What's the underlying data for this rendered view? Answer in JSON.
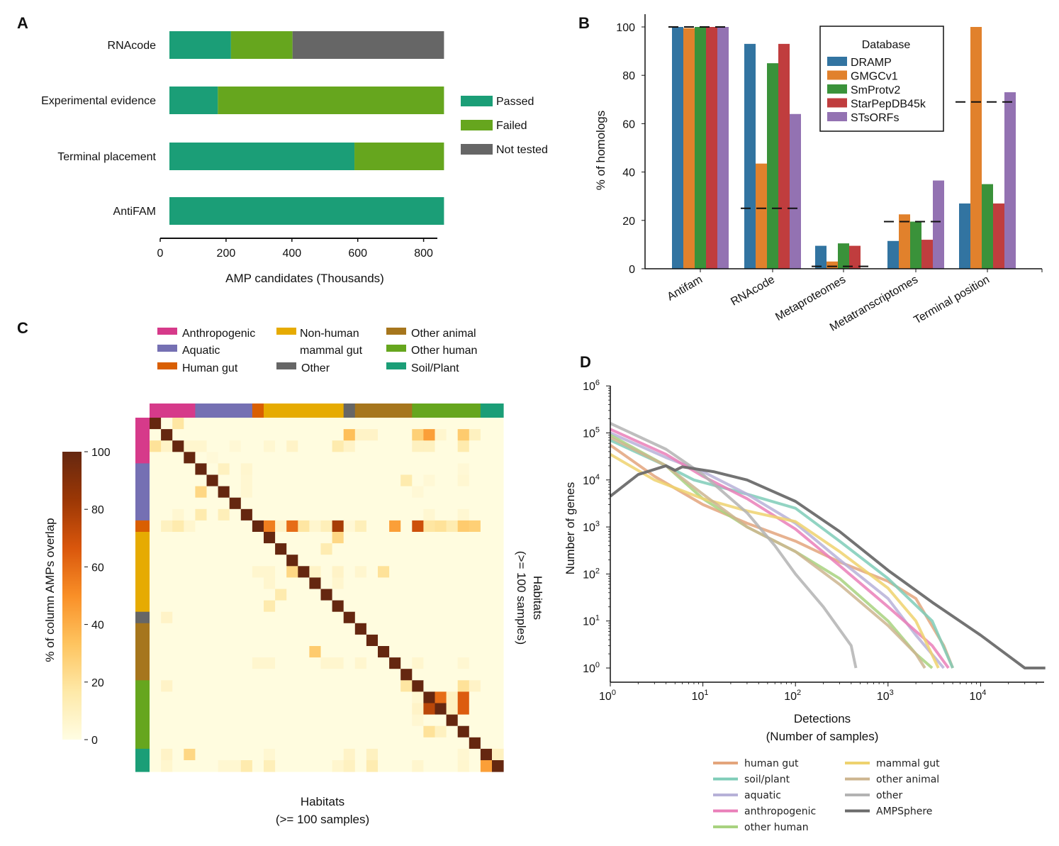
{
  "figure": {
    "panels": [
      "A",
      "B",
      "C",
      "D"
    ]
  },
  "chart_data": [
    {
      "panel": "A",
      "type": "bar",
      "orientation": "horizontal",
      "stacked": true,
      "title": "",
      "xlabel": "AMP candidates (Thousands)",
      "ylabel": "",
      "xlim": [
        0,
        850
      ],
      "xticks": [
        "0",
        "200",
        "400",
        "600",
        "800"
      ],
      "xtick_values": [
        0,
        200,
        400,
        600,
        800
      ],
      "categories": [
        "RNAcode",
        "Experimental evidence",
        "Terminal placement",
        "AntiFAM"
      ],
      "series": [
        {
          "name": "Passed",
          "color": "#1b9e77",
          "values": [
            187,
            147,
            562,
            834
          ]
        },
        {
          "name": "Failed",
          "color": "#66a61e",
          "values": [
            187,
            687,
            272,
            0
          ]
        },
        {
          "name": "Not tested",
          "color": "#666666",
          "values": [
            460,
            0,
            0,
            0
          ]
        }
      ],
      "legend": {
        "position": "right",
        "entries": [
          "Passed",
          "Failed",
          "Not tested"
        ]
      }
    },
    {
      "panel": "B",
      "type": "bar",
      "orientation": "vertical",
      "grouped": true,
      "title": "",
      "xlabel": "",
      "ylabel": "% of homologs",
      "ylim": [
        0,
        105
      ],
      "yticks": [
        "0",
        "20",
        "40",
        "60",
        "80",
        "100"
      ],
      "ytick_values": [
        0,
        20,
        40,
        60,
        80,
        100
      ],
      "categories": [
        "Antifam",
        "RNAcode",
        "Metaproteomes",
        "Metatranscriptomes",
        "Terminal position"
      ],
      "series": [
        {
          "name": "DRAMP",
          "color": "#3274a1",
          "values": [
            100,
            93,
            9.5,
            11.5,
            27
          ]
        },
        {
          "name": "GMGCv1",
          "color": "#e1812c",
          "values": [
            99.5,
            43.5,
            3,
            22.5,
            100
          ]
        },
        {
          "name": "SmProtv2",
          "color": "#3a923a",
          "values": [
            100,
            85,
            10.5,
            19.5,
            35
          ]
        },
        {
          "name": "StarPepDB45k",
          "color": "#c03d3e",
          "values": [
            100,
            93,
            9.5,
            12,
            27
          ]
        },
        {
          "name": "STsORFs",
          "color": "#9372b2",
          "values": [
            100,
            64,
            0,
            36.5,
            73
          ]
        }
      ],
      "reference_lines": [
        100,
        25,
        1,
        19.5,
        69
      ],
      "legend": {
        "title": "Database",
        "position": "top-center",
        "entries": [
          "DRAMP",
          "GMGCv1",
          "SmProtv2",
          "StarPepDB45k",
          "STsORFs"
        ]
      }
    },
    {
      "panel": "C",
      "type": "heatmap",
      "title": "",
      "xlabel": "Habitats\n(>= 100 samples)",
      "xlabel_lines": [
        "Habitats",
        "(>= 100 samples)"
      ],
      "ylabel_lines": [
        "Habitats",
        "(>= 100 samples)"
      ],
      "colorbar": {
        "label": "% of column AMPs overlap",
        "range": [
          0,
          100
        ],
        "ticks": [
          "0",
          "20",
          "40",
          "60",
          "80",
          "100"
        ],
        "tick_values": [
          0,
          20,
          40,
          60,
          80,
          100
        ],
        "colors": [
          "#fffde3",
          "#fee9a8",
          "#fec45f",
          "#f98f27",
          "#d9560c",
          "#9b3705",
          "#652710"
        ]
      },
      "groups": [
        {
          "name": "Anthropogenic",
          "color": "#d63a8a",
          "count": 4
        },
        {
          "name": "Aquatic",
          "color": "#7570b3",
          "count": 5
        },
        {
          "name": "Human gut",
          "color": "#d95f02",
          "count": 1
        },
        {
          "name": "Non-human mammal gut",
          "color": "#e6ab02",
          "count": 7
        },
        {
          "name": "Other",
          "color": "#666666",
          "count": 1
        },
        {
          "name": "Other animal",
          "color": "#a6761d",
          "count": 5
        },
        {
          "name": "Other human",
          "color": "#66a61e",
          "count": 6
        },
        {
          "name": "Soil/Plant",
          "color": "#1b9e77",
          "count": 2
        }
      ],
      "legend_entries": [
        {
          "label": "Anthropogenic",
          "color": "#d63a8a"
        },
        {
          "label": "Aquatic",
          "color": "#7570b3"
        },
        {
          "label": "Human gut",
          "color": "#d95f02"
        },
        {
          "label": "Non-human\nmammal gut",
          "line1": "Non-human",
          "line2": "mammal gut",
          "color": "#e6ab02"
        },
        {
          "label": "Other",
          "color": "#666666"
        },
        {
          "label": "Other animal",
          "color": "#a6761d"
        },
        {
          "label": "Other human",
          "color": "#66a61e"
        },
        {
          "label": "Soil/Plant",
          "color": "#1b9e77"
        }
      ],
      "size": 31,
      "diagonal_value": 100,
      "background_value": 1,
      "cells": [
        [
          0,
          2,
          18
        ],
        [
          1,
          17,
          35
        ],
        [
          1,
          18,
          8
        ],
        [
          1,
          19,
          8
        ],
        [
          1,
          23,
          28
        ],
        [
          1,
          24,
          45
        ],
        [
          1,
          25,
          6
        ],
        [
          1,
          27,
          30
        ],
        [
          1,
          28,
          10
        ],
        [
          2,
          0,
          20
        ],
        [
          2,
          1,
          8
        ],
        [
          2,
          3,
          6
        ],
        [
          2,
          4,
          6
        ],
        [
          2,
          7,
          4
        ],
        [
          2,
          10,
          5
        ],
        [
          2,
          12,
          8
        ],
        [
          2,
          16,
          15
        ],
        [
          2,
          17,
          8
        ],
        [
          2,
          23,
          10
        ],
        [
          2,
          24,
          10
        ],
        [
          2,
          27,
          15
        ],
        [
          3,
          5,
          3
        ],
        [
          4,
          6,
          10
        ],
        [
          4,
          8,
          6
        ],
        [
          4,
          27,
          4
        ],
        [
          5,
          8,
          5
        ],
        [
          5,
          22,
          15
        ],
        [
          5,
          24,
          4
        ],
        [
          5,
          27,
          5
        ],
        [
          6,
          4,
          25
        ],
        [
          6,
          8,
          5
        ],
        [
          6,
          23,
          4
        ],
        [
          8,
          4,
          15
        ],
        [
          8,
          6,
          12
        ],
        [
          8,
          2,
          5
        ],
        [
          8,
          24,
          5
        ],
        [
          8,
          27,
          5
        ],
        [
          9,
          1,
          10
        ],
        [
          9,
          2,
          15
        ],
        [
          9,
          3,
          6
        ],
        [
          9,
          10,
          55
        ],
        [
          9,
          11,
          8
        ],
        [
          9,
          12,
          60
        ],
        [
          9,
          13,
          18
        ],
        [
          9,
          14,
          6
        ],
        [
          9,
          15,
          12
        ],
        [
          9,
          16,
          80
        ],
        [
          9,
          17,
          4
        ],
        [
          9,
          18,
          12
        ],
        [
          9,
          21,
          45
        ],
        [
          9,
          23,
          70
        ],
        [
          9,
          24,
          18
        ],
        [
          9,
          25,
          20
        ],
        [
          9,
          26,
          14
        ],
        [
          9,
          27,
          30
        ],
        [
          9,
          28,
          28
        ],
        [
          10,
          16,
          25
        ],
        [
          11,
          15,
          14
        ],
        [
          13,
          9,
          6
        ],
        [
          13,
          10,
          6
        ],
        [
          13,
          12,
          25
        ],
        [
          13,
          14,
          8
        ],
        [
          13,
          16,
          8
        ],
        [
          13,
          18,
          6
        ],
        [
          13,
          20,
          20
        ],
        [
          14,
          10,
          6
        ],
        [
          14,
          16,
          6
        ],
        [
          15,
          11,
          15
        ],
        [
          16,
          10,
          15
        ],
        [
          17,
          1,
          8
        ],
        [
          20,
          14,
          30
        ],
        [
          21,
          9,
          6
        ],
        [
          21,
          10,
          6
        ],
        [
          21,
          15,
          6
        ],
        [
          21,
          16,
          6
        ],
        [
          21,
          18,
          6
        ],
        [
          21,
          23,
          6
        ],
        [
          21,
          27,
          5
        ],
        [
          23,
          1,
          8
        ],
        [
          23,
          22,
          18
        ],
        [
          23,
          27,
          20
        ],
        [
          23,
          28,
          8
        ],
        [
          24,
          23,
          5
        ],
        [
          24,
          25,
          60
        ],
        [
          24,
          26,
          10
        ],
        [
          24,
          27,
          65
        ],
        [
          25,
          23,
          8
        ],
        [
          25,
          24,
          75
        ],
        [
          25,
          26,
          10
        ],
        [
          25,
          27,
          65
        ],
        [
          26,
          23,
          5
        ],
        [
          27,
          24,
          20
        ],
        [
          27,
          25,
          10
        ],
        [
          29,
          1,
          8
        ],
        [
          29,
          3,
          25
        ],
        [
          29,
          10,
          5
        ],
        [
          29,
          17,
          8
        ],
        [
          29,
          19,
          10
        ],
        [
          29,
          27,
          5
        ],
        [
          29,
          30,
          10
        ],
        [
          30,
          1,
          6
        ],
        [
          30,
          6,
          5
        ],
        [
          30,
          7,
          5
        ],
        [
          30,
          8,
          15
        ],
        [
          30,
          10,
          12
        ],
        [
          30,
          16,
          6
        ],
        [
          30,
          17,
          10
        ],
        [
          30,
          19,
          14
        ],
        [
          30,
          23,
          6
        ],
        [
          30,
          27,
          6
        ],
        [
          30,
          29,
          45
        ]
      ]
    },
    {
      "panel": "D",
      "type": "line",
      "scale": "log-log",
      "title": "",
      "xlabel": "Detections\n(Number of samples)",
      "xlabel_lines": [
        "Detections",
        "(Number of samples)"
      ],
      "ylabel": "Number of genes",
      "xlim": [
        1,
        50000
      ],
      "ylim": [
        0.5,
        1000000
      ],
      "xticks": [
        {
          "base": "10",
          "exp": "0",
          "value": 1
        },
        {
          "base": "10",
          "exp": "1",
          "value": 10
        },
        {
          "base": "10",
          "exp": "2",
          "value": 100
        },
        {
          "base": "10",
          "exp": "3",
          "value": 1000
        },
        {
          "base": "10",
          "exp": "4",
          "value": 10000
        }
      ],
      "yticks": [
        {
          "base": "10",
          "exp": "0",
          "value": 1
        },
        {
          "base": "10",
          "exp": "1",
          "value": 10
        },
        {
          "base": "10",
          "exp": "2",
          "value": 100
        },
        {
          "base": "10",
          "exp": "3",
          "value": 1000
        },
        {
          "base": "10",
          "exp": "4",
          "value": 10000
        },
        {
          "base": "10",
          "exp": "5",
          "value": 100000
        },
        {
          "base": "10",
          "exp": "6",
          "value": 1000000
        }
      ],
      "series": [
        {
          "name": "human gut",
          "color": "#e3a57c",
          "x": [
            1,
            3,
            10,
            30,
            100,
            300,
            1000,
            2000,
            4000,
            5000
          ],
          "y": [
            55000,
            12000,
            3000,
            1200,
            500,
            180,
            70,
            30,
            3,
            1
          ]
        },
        {
          "name": "soil/plant",
          "color": "#7fcdb8",
          "x": [
            1,
            4,
            8,
            30,
            100,
            300,
            1000,
            3000,
            5000
          ],
          "y": [
            70000,
            20000,
            10000,
            5000,
            2500,
            500,
            80,
            10,
            1
          ]
        },
        {
          "name": "aquatic",
          "color": "#b7b1d8",
          "x": [
            1,
            4,
            10,
            30,
            100,
            300,
            1000,
            2000,
            4000
          ],
          "y": [
            100000,
            30000,
            15000,
            5000,
            1200,
            200,
            30,
            5,
            1
          ]
        },
        {
          "name": "anthropogenic",
          "color": "#ea7fb9",
          "x": [
            1,
            4,
            10,
            30,
            100,
            300,
            1000,
            3000,
            4500
          ],
          "y": [
            120000,
            35000,
            12000,
            4000,
            900,
            150,
            20,
            3,
            1
          ]
        },
        {
          "name": "other human",
          "color": "#a8d27f",
          "x": [
            1,
            4,
            10,
            30,
            100,
            300,
            1000,
            2000,
            3000
          ],
          "y": [
            90000,
            20000,
            4000,
            1000,
            300,
            80,
            10,
            2,
            1
          ]
        },
        {
          "name": "mammal gut",
          "color": "#eed26f",
          "x": [
            1,
            3,
            10,
            30,
            100,
            300,
            1000,
            2000,
            3500
          ],
          "y": [
            35000,
            10000,
            4000,
            2200,
            1300,
            300,
            50,
            10,
            1
          ]
        },
        {
          "name": "other animal",
          "color": "#cdb58f",
          "x": [
            1,
            4,
            10,
            30,
            100,
            300,
            1000,
            2000,
            2500
          ],
          "y": [
            80000,
            20000,
            5000,
            1000,
            300,
            60,
            8,
            2,
            1
          ]
        },
        {
          "name": "other",
          "color": "#b3b3b3",
          "x": [
            1,
            4,
            10,
            30,
            60,
            100,
            200,
            400,
            450
          ],
          "y": [
            160000,
            45000,
            13000,
            2000,
            400,
            100,
            20,
            3,
            1
          ]
        },
        {
          "name": "AMPSphere",
          "color": "#6b6b6b",
          "x": [
            1,
            2,
            4,
            5,
            6,
            13,
            30,
            100,
            300,
            1000,
            3000,
            10000,
            30000,
            50000
          ],
          "y": [
            4500,
            13000,
            20000,
            16000,
            19000,
            15000,
            10000,
            3500,
            800,
            120,
            25,
            5,
            1,
            1
          ]
        }
      ],
      "legend": {
        "position": "bottom",
        "columns": 2,
        "entries": [
          "human gut",
          "soil/plant",
          "aquatic",
          "anthropogenic",
          "other human",
          "mammal gut",
          "other animal",
          "other",
          "AMPSphere"
        ]
      }
    }
  ]
}
